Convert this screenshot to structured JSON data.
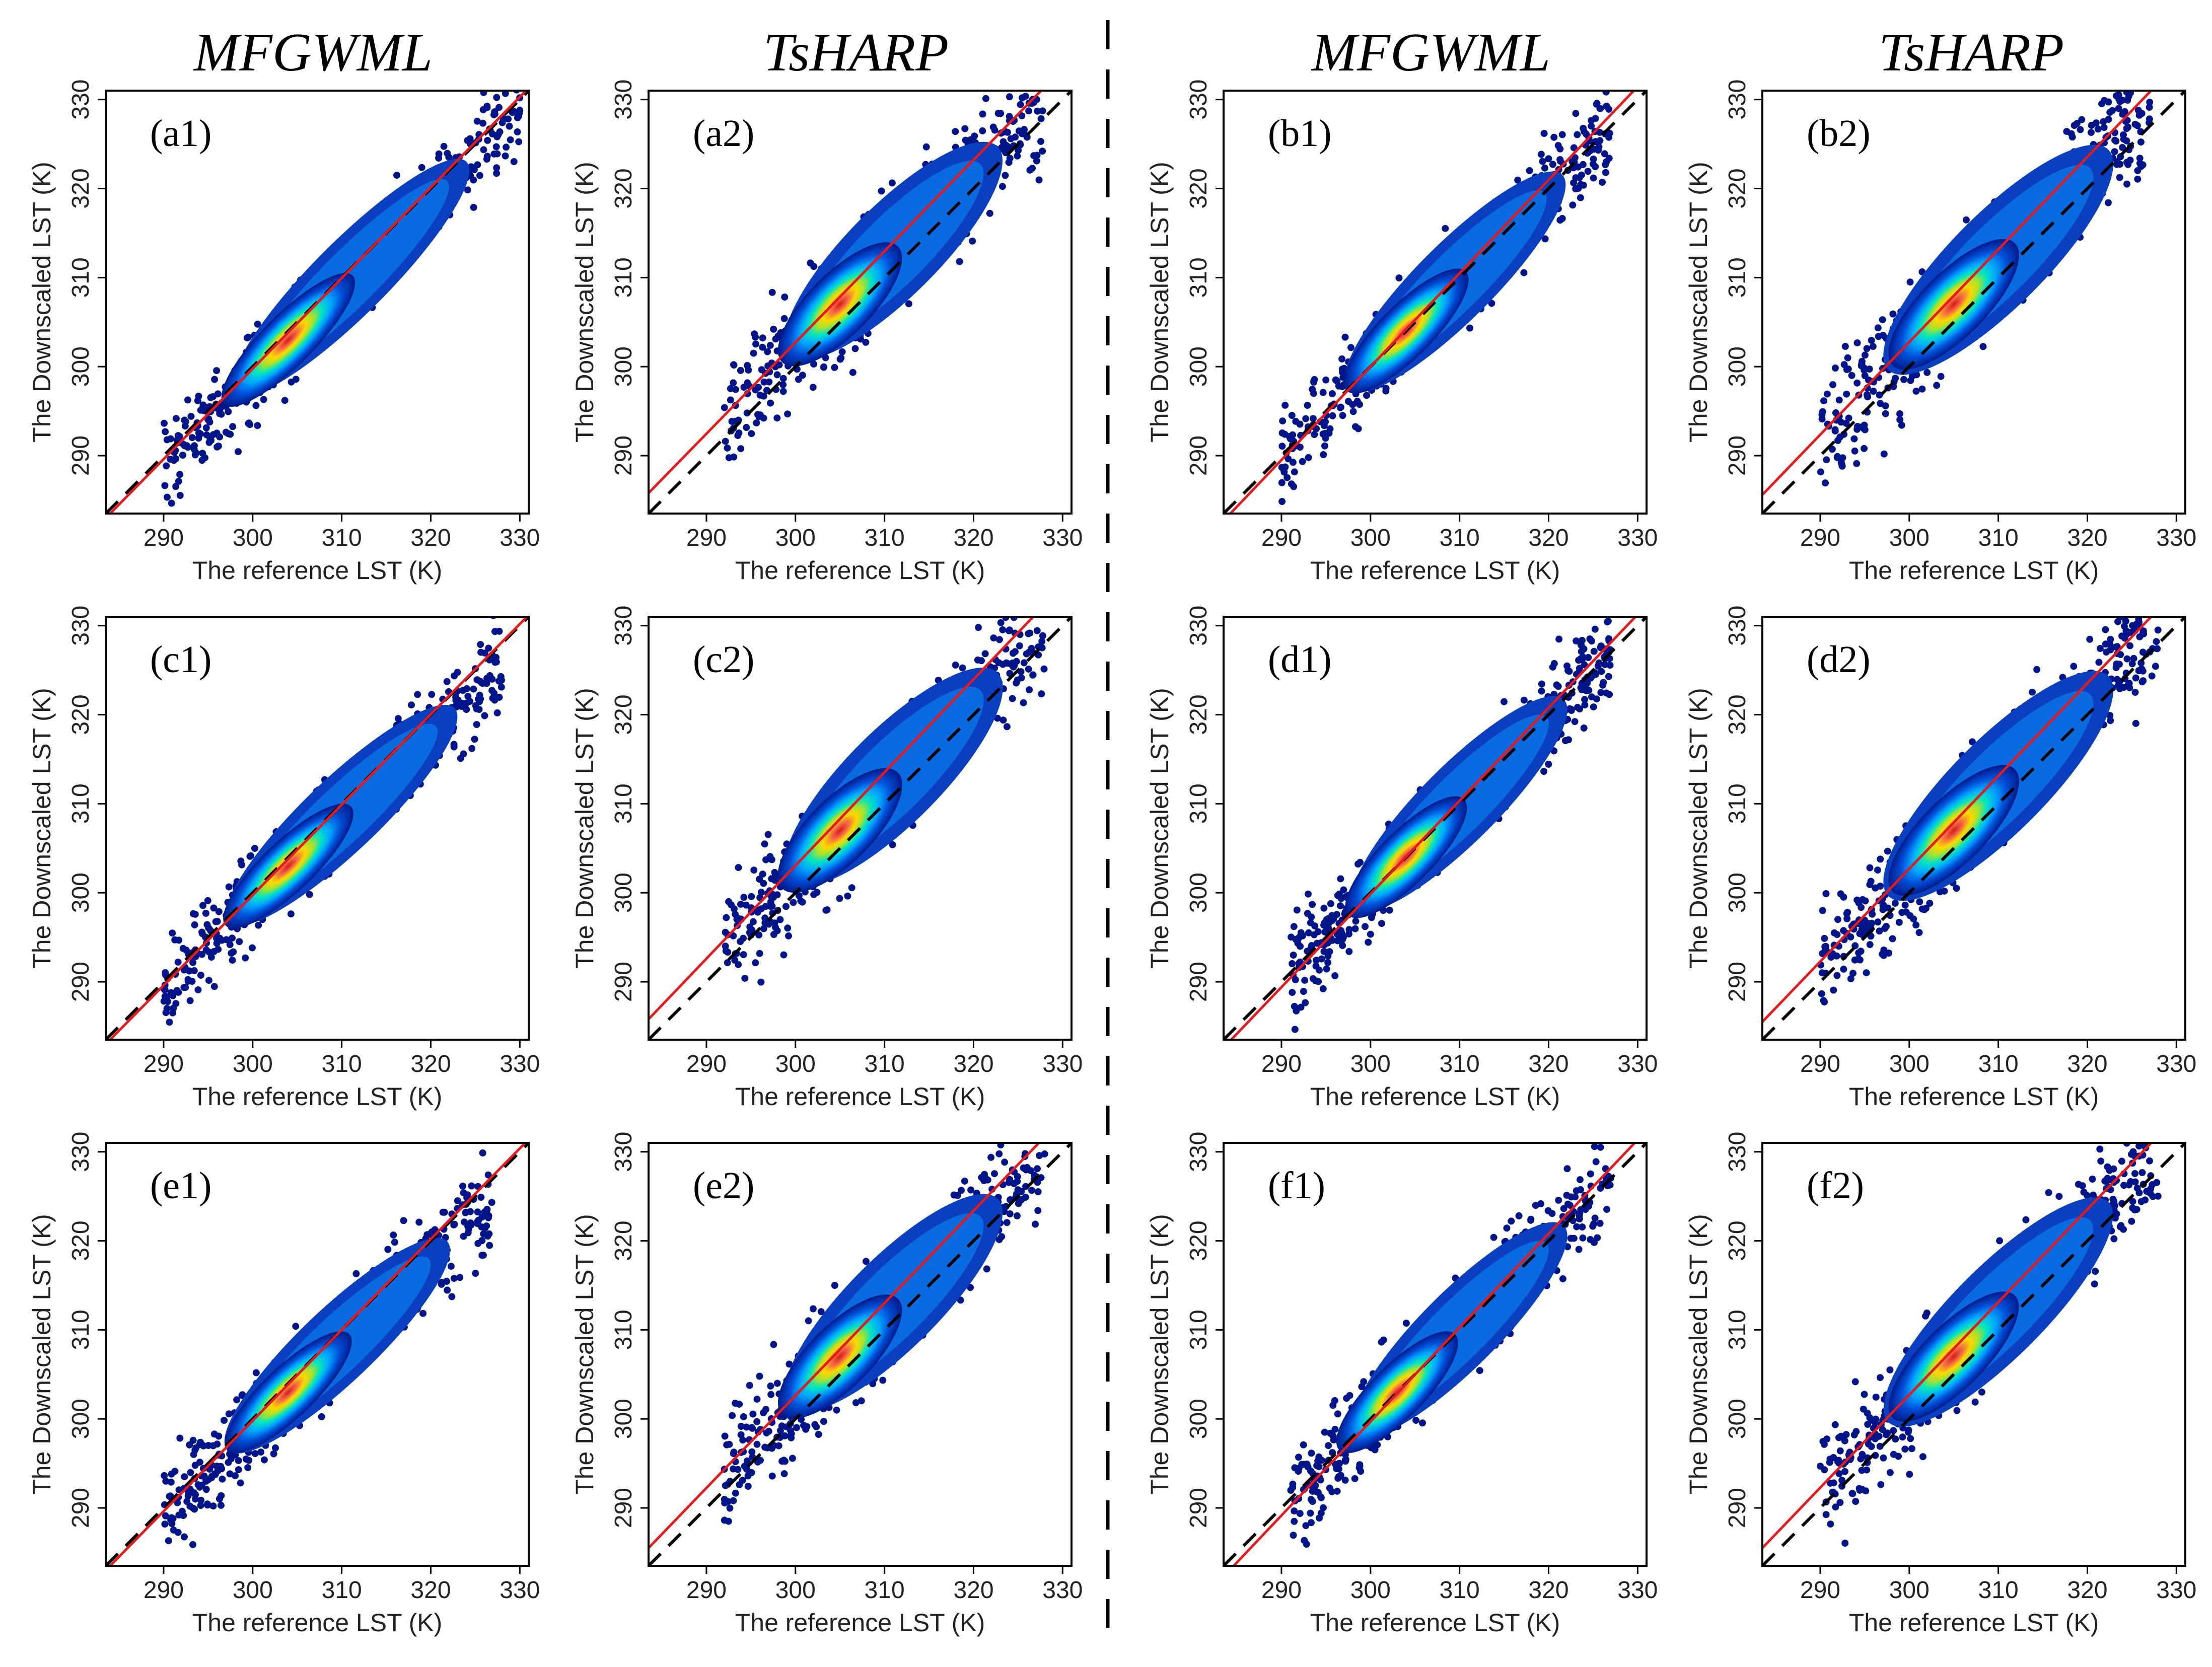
{
  "figure": {
    "column_titles": [
      "MFGWML",
      "TsHARP",
      "MFGWML",
      "TsHARP"
    ]
  },
  "chart_data": [
    {
      "type": "scatter",
      "panel": "(a1)",
      "method": "MFGWML",
      "xlabel": "The reference LST (K)",
      "ylabel": "The Downscaled LST (K)",
      "xlim": [
        283.5,
        331
      ],
      "ylim": [
        283.5,
        331
      ],
      "xticks": [
        290,
        300,
        310,
        320,
        330
      ],
      "yticks": [
        290,
        300,
        310,
        320,
        330
      ],
      "identity_line": {
        "x": [
          283.5,
          331
        ],
        "y": [
          283.5,
          331
        ],
        "style": "dashed",
        "color": "#000000"
      },
      "fit_line": {
        "x": [
          283.5,
          331
        ],
        "y": [
          283.0,
          331.3
        ],
        "color": "#e41a1c"
      },
      "cloud": {
        "x_range": [
          290,
          330
        ],
        "dense_center": [
          304,
          303
        ],
        "slope": 1.0,
        "spread": 2.6
      },
      "grid": false
    },
    {
      "type": "scatter",
      "panel": "(a2)",
      "method": "TsHARP",
      "xlabel": "The reference LST (K)",
      "ylabel": "The Downscaled LST (K)",
      "xlim": [
        283.5,
        331
      ],
      "ylim": [
        283.5,
        331
      ],
      "xticks": [
        290,
        300,
        310,
        320,
        330
      ],
      "yticks": [
        290,
        300,
        310,
        320,
        330
      ],
      "identity_line": {
        "x": [
          283.5,
          331
        ],
        "y": [
          283.5,
          331
        ],
        "style": "dashed",
        "color": "#000000"
      },
      "fit_line": {
        "x": [
          283.5,
          331
        ],
        "y": [
          285.8,
          334.5
        ],
        "color": "#e41a1c"
      },
      "cloud": {
        "x_range": [
          292,
          328
        ],
        "dense_center": [
          305,
          307
        ],
        "slope": 1.0,
        "spread": 3.2
      },
      "grid": false
    },
    {
      "type": "scatter",
      "panel": "(b1)",
      "method": "MFGWML",
      "xlabel": "The reference LST (K)",
      "ylabel": "The Downscaled LST (K)",
      "xlim": [
        283.5,
        331
      ],
      "ylim": [
        283.5,
        331
      ],
      "xticks": [
        290,
        300,
        310,
        320,
        330
      ],
      "yticks": [
        290,
        300,
        310,
        320,
        330
      ],
      "identity_line": {
        "x": [
          283.5,
          331
        ],
        "y": [
          283.5,
          331
        ],
        "style": "dashed",
        "color": "#000000"
      },
      "fit_line": {
        "x": [
          283.5,
          331
        ],
        "y": [
          282.7,
          332.5
        ],
        "color": "#e41a1c"
      },
      "cloud": {
        "x_range": [
          290,
          327
        ],
        "dense_center": [
          304,
          304
        ],
        "slope": 1.0,
        "spread": 2.7
      },
      "grid": false
    },
    {
      "type": "scatter",
      "panel": "(b2)",
      "method": "TsHARP",
      "xlabel": "The reference LST (K)",
      "ylabel": "The Downscaled LST (K)",
      "xlim": [
        283.5,
        331
      ],
      "ylim": [
        283.5,
        331
      ],
      "xticks": [
        290,
        300,
        310,
        320,
        330
      ],
      "yticks": [
        290,
        300,
        310,
        320,
        330
      ],
      "identity_line": {
        "x": [
          283.5,
          331
        ],
        "y": [
          283.5,
          331
        ],
        "style": "dashed",
        "color": "#000000"
      },
      "fit_line": {
        "x": [
          283.5,
          331
        ],
        "y": [
          285.6,
          335.0
        ],
        "color": "#e41a1c"
      },
      "cloud": {
        "x_range": [
          290,
          328
        ],
        "dense_center": [
          305,
          307
        ],
        "slope": 1.0,
        "spread": 3.3
      },
      "grid": false
    },
    {
      "type": "scatter",
      "panel": "(c1)",
      "method": "MFGWML",
      "xlabel": "The reference LST (K)",
      "ylabel": "The Downscaled LST (K)",
      "xlim": [
        283.5,
        331
      ],
      "ylim": [
        283.5,
        331
      ],
      "xticks": [
        290,
        300,
        310,
        320,
        330
      ],
      "yticks": [
        290,
        300,
        310,
        320,
        330
      ],
      "identity_line": {
        "x": [
          283.5,
          331
        ],
        "y": [
          283.5,
          331
        ],
        "style": "dashed",
        "color": "#000000"
      },
      "fit_line": {
        "x": [
          283.5,
          331
        ],
        "y": [
          283.0,
          331.2
        ],
        "color": "#e41a1c"
      },
      "cloud": {
        "x_range": [
          290,
          328
        ],
        "dense_center": [
          304,
          303
        ],
        "slope": 0.95,
        "spread": 2.6
      },
      "grid": false
    },
    {
      "type": "scatter",
      "panel": "(c2)",
      "method": "TsHARP",
      "xlabel": "The reference LST (K)",
      "ylabel": "The Downscaled LST (K)",
      "xlim": [
        283.5,
        331
      ],
      "ylim": [
        283.5,
        331
      ],
      "xticks": [
        290,
        300,
        310,
        320,
        330
      ],
      "yticks": [
        290,
        300,
        310,
        320,
        330
      ],
      "identity_line": {
        "x": [
          283.5,
          331
        ],
        "y": [
          283.5,
          331
        ],
        "style": "dashed",
        "color": "#000000"
      },
      "fit_line": {
        "x": [
          283.5,
          331
        ],
        "y": [
          285.8,
          335.5
        ],
        "color": "#e41a1c"
      },
      "cloud": {
        "x_range": [
          292,
          328
        ],
        "dense_center": [
          305,
          307
        ],
        "slope": 1.0,
        "spread": 3.3
      },
      "grid": false
    },
    {
      "type": "scatter",
      "panel": "(d1)",
      "method": "MFGWML",
      "xlabel": "The reference LST (K)",
      "ylabel": "The Downscaled LST (K)",
      "xlim": [
        283.5,
        331
      ],
      "ylim": [
        283.5,
        331
      ],
      "xticks": [
        290,
        300,
        310,
        320,
        330
      ],
      "yticks": [
        290,
        300,
        310,
        320,
        330
      ],
      "identity_line": {
        "x": [
          283.5,
          331
        ],
        "y": [
          283.5,
          331
        ],
        "style": "dashed",
        "color": "#000000"
      },
      "fit_line": {
        "x": [
          283.5,
          331
        ],
        "y": [
          282.6,
          332.3
        ],
        "color": "#e41a1c"
      },
      "cloud": {
        "x_range": [
          291,
          327
        ],
        "dense_center": [
          304,
          304
        ],
        "slope": 1.0,
        "spread": 2.7
      },
      "grid": false
    },
    {
      "type": "scatter",
      "panel": "(d2)",
      "method": "TsHARP",
      "xlabel": "The reference LST (K)",
      "ylabel": "The Downscaled LST (K)",
      "xlim": [
        283.5,
        331
      ],
      "ylim": [
        283.5,
        331
      ],
      "xticks": [
        290,
        300,
        310,
        320,
        330
      ],
      "yticks": [
        290,
        300,
        310,
        320,
        330
      ],
      "identity_line": {
        "x": [
          283.5,
          331
        ],
        "y": [
          283.5,
          331
        ],
        "style": "dashed",
        "color": "#000000"
      },
      "fit_line": {
        "x": [
          283.5,
          331
        ],
        "y": [
          285.5,
          335.0
        ],
        "color": "#e41a1c"
      },
      "cloud": {
        "x_range": [
          290,
          328
        ],
        "dense_center": [
          305,
          307
        ],
        "slope": 1.0,
        "spread": 3.3
      },
      "grid": false
    },
    {
      "type": "scatter",
      "panel": "(e1)",
      "method": "MFGWML",
      "xlabel": "The reference LST (K)",
      "ylabel": "The Downscaled LST (K)",
      "xlim": [
        283.5,
        331
      ],
      "ylim": [
        283.5,
        331
      ],
      "xticks": [
        290,
        300,
        310,
        320,
        330
      ],
      "yticks": [
        290,
        300,
        310,
        320,
        330
      ],
      "identity_line": {
        "x": [
          283.5,
          331
        ],
        "y": [
          283.5,
          331
        ],
        "style": "dashed",
        "color": "#000000"
      },
      "fit_line": {
        "x": [
          283.5,
          331
        ],
        "y": [
          283.0,
          331.4
        ],
        "color": "#e41a1c"
      },
      "cloud": {
        "x_range": [
          290,
          327
        ],
        "dense_center": [
          304,
          303
        ],
        "slope": 0.95,
        "spread": 2.6
      },
      "grid": false
    },
    {
      "type": "scatter",
      "panel": "(e2)",
      "method": "TsHARP",
      "xlabel": "The reference LST (K)",
      "ylabel": "The Downscaled LST (K)",
      "xlim": [
        283.5,
        331
      ],
      "ylim": [
        283.5,
        331
      ],
      "xticks": [
        290,
        300,
        310,
        320,
        330
      ],
      "yticks": [
        290,
        300,
        310,
        320,
        330
      ],
      "identity_line": {
        "x": [
          283.5,
          331
        ],
        "y": [
          283.5,
          331
        ],
        "style": "dashed",
        "color": "#000000"
      },
      "fit_line": {
        "x": [
          283.5,
          331
        ],
        "y": [
          285.5,
          334.8
        ],
        "color": "#e41a1c"
      },
      "cloud": {
        "x_range": [
          292,
          328
        ],
        "dense_center": [
          305,
          307
        ],
        "slope": 1.0,
        "spread": 3.2
      },
      "grid": false
    },
    {
      "type": "scatter",
      "panel": "(f1)",
      "method": "MFGWML",
      "xlabel": "The reference LST (K)",
      "ylabel": "The Downscaled LST (K)",
      "xlim": [
        283.5,
        331
      ],
      "ylim": [
        283.5,
        331
      ],
      "xticks": [
        290,
        300,
        310,
        320,
        330
      ],
      "yticks": [
        290,
        300,
        310,
        320,
        330
      ],
      "identity_line": {
        "x": [
          283.5,
          331
        ],
        "y": [
          283.5,
          331
        ],
        "style": "dashed",
        "color": "#000000"
      },
      "fit_line": {
        "x": [
          283.5,
          331
        ],
        "y": [
          282.3,
          332.4
        ],
        "color": "#e41a1c"
      },
      "cloud": {
        "x_range": [
          291,
          327
        ],
        "dense_center": [
          303,
          303
        ],
        "slope": 1.0,
        "spread": 2.7
      },
      "grid": false
    },
    {
      "type": "scatter",
      "panel": "(f2)",
      "method": "TsHARP",
      "xlabel": "The reference LST (K)",
      "ylabel": "The Downscaled LST (K)",
      "xlim": [
        283.5,
        331
      ],
      "ylim": [
        283.5,
        331
      ],
      "xticks": [
        290,
        300,
        310,
        320,
        330
      ],
      "yticks": [
        290,
        300,
        310,
        320,
        330
      ],
      "identity_line": {
        "x": [
          283.5,
          331
        ],
        "y": [
          283.5,
          331
        ],
        "style": "dashed",
        "color": "#000000"
      },
      "fit_line": {
        "x": [
          283.5,
          331
        ],
        "y": [
          285.5,
          335.0
        ],
        "color": "#e41a1c"
      },
      "cloud": {
        "x_range": [
          290,
          328
        ],
        "dense_center": [
          305,
          307
        ],
        "slope": 1.0,
        "spread": 3.2
      },
      "grid": false
    }
  ]
}
